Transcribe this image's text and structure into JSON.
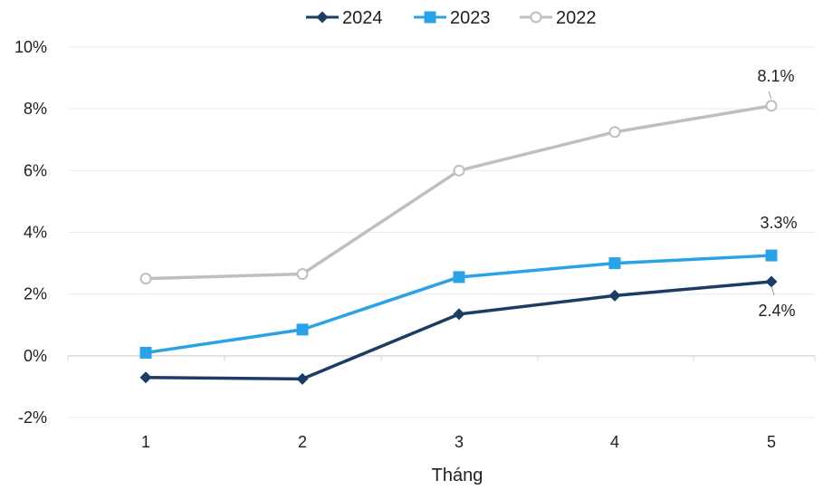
{
  "chart_data": {
    "type": "line",
    "categories": [
      "1",
      "2",
      "3",
      "4",
      "5"
    ],
    "xlabel": "Tháng",
    "ylabel": "",
    "ylim": [
      -2,
      10
    ],
    "yticks": [
      -2,
      0,
      2,
      4,
      6,
      8,
      10
    ],
    "ytick_labels": [
      "-2%",
      "0%",
      "2%",
      "4%",
      "6%",
      "8%",
      "10%"
    ],
    "grid": true,
    "legend_position": "top-center",
    "series": [
      {
        "name": "2024",
        "values": [
          -0.7,
          -0.75,
          1.35,
          1.95,
          2.4
        ],
        "color": "#1c3d63",
        "marker": "diamond"
      },
      {
        "name": "2023",
        "values": [
          0.1,
          0.85,
          2.55,
          3.0,
          3.25
        ],
        "color": "#29a3e6",
        "marker": "square"
      },
      {
        "name": "2022",
        "values": [
          2.5,
          2.65,
          6.0,
          7.25,
          8.1
        ],
        "color": "#bfbfbf",
        "marker": "circle"
      }
    ],
    "annotations": [
      {
        "series": "2022",
        "index": 4,
        "text": "8.1%"
      },
      {
        "series": "2023",
        "index": 4,
        "text": "3.3%"
      },
      {
        "series": "2024",
        "index": 4,
        "text": "2.4%"
      }
    ]
  }
}
